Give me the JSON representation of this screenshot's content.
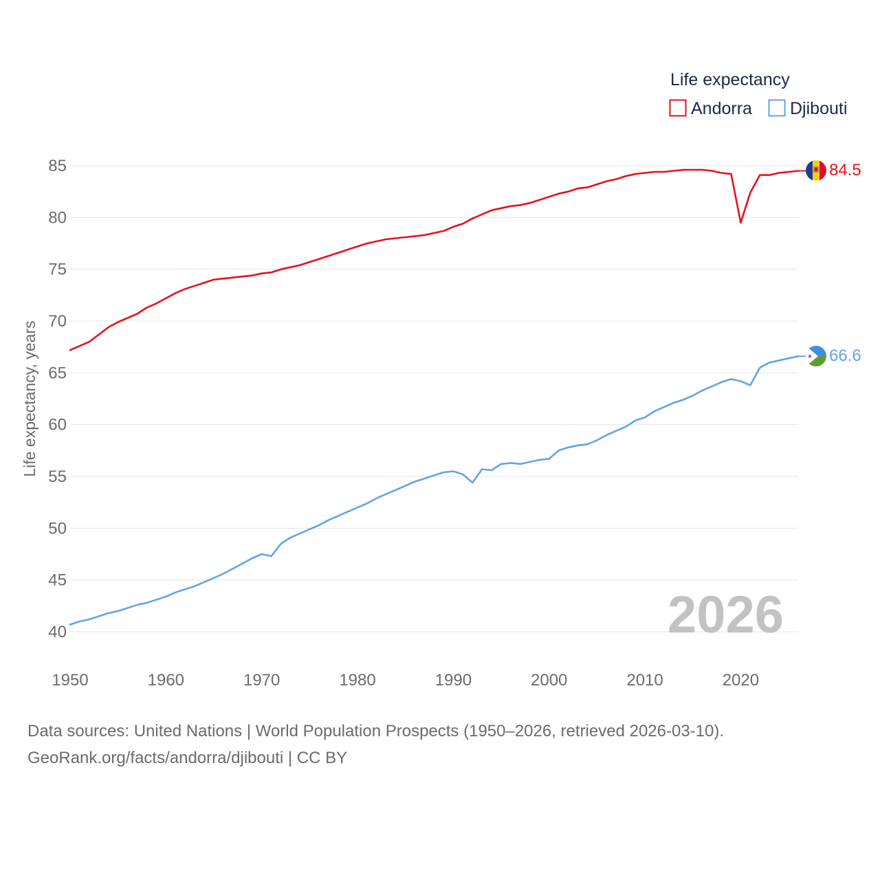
{
  "chart_data": {
    "type": "line",
    "title": "Life expectancy",
    "xlabel": "",
    "ylabel": "Life expectancy, years",
    "xlim": [
      1950,
      2026
    ],
    "ylim": [
      38,
      87
    ],
    "x_ticks": [
      1950,
      1960,
      1970,
      1980,
      1990,
      2000,
      2010,
      2020
    ],
    "y_ticks": [
      40,
      45,
      50,
      55,
      60,
      65,
      70,
      75,
      80,
      85
    ],
    "grid": true,
    "legend_position": "top-right",
    "year_watermark": "2026",
    "series": [
      {
        "name": "Andorra",
        "color": "#e8101a",
        "end_label": "84.5",
        "flag": "andorra-flag",
        "x": [
          1950,
          1951,
          1952,
          1953,
          1954,
          1955,
          1956,
          1957,
          1958,
          1959,
          1960,
          1961,
          1962,
          1963,
          1964,
          1965,
          1966,
          1967,
          1968,
          1969,
          1970,
          1971,
          1972,
          1973,
          1974,
          1975,
          1976,
          1977,
          1978,
          1979,
          1980,
          1981,
          1982,
          1983,
          1984,
          1985,
          1986,
          1987,
          1988,
          1989,
          1990,
          1991,
          1992,
          1993,
          1994,
          1995,
          1996,
          1997,
          1998,
          1999,
          2000,
          2001,
          2002,
          2003,
          2004,
          2005,
          2006,
          2007,
          2008,
          2009,
          2010,
          2011,
          2012,
          2013,
          2014,
          2015,
          2016,
          2017,
          2018,
          2019,
          2020,
          2021,
          2022,
          2023,
          2024,
          2025,
          2026
        ],
        "values": [
          67.2,
          67.6,
          68.0,
          68.7,
          69.4,
          69.9,
          70.3,
          70.7,
          71.3,
          71.7,
          72.2,
          72.7,
          73.1,
          73.4,
          73.7,
          74.0,
          74.1,
          74.2,
          74.3,
          74.4,
          74.6,
          74.7,
          75.0,
          75.2,
          75.4,
          75.7,
          76.0,
          76.3,
          76.6,
          76.9,
          77.2,
          77.5,
          77.7,
          77.9,
          78.0,
          78.1,
          78.2,
          78.3,
          78.5,
          78.7,
          79.1,
          79.4,
          79.9,
          80.3,
          80.7,
          80.9,
          81.1,
          81.2,
          81.4,
          81.7,
          82.0,
          82.3,
          82.5,
          82.8,
          82.9,
          83.2,
          83.5,
          83.7,
          84.0,
          84.2,
          84.3,
          84.4,
          84.4,
          84.5,
          84.6,
          84.6,
          84.6,
          84.5,
          84.3,
          84.2,
          79.5,
          82.4,
          84.1,
          84.1,
          84.3,
          84.4,
          84.5
        ]
      },
      {
        "name": "Djibouti",
        "color": "#62a4e4",
        "end_label": "66.6",
        "flag": "djibouti-flag",
        "x": [
          1950,
          1951,
          1952,
          1953,
          1954,
          1955,
          1956,
          1957,
          1958,
          1959,
          1960,
          1961,
          1962,
          1963,
          1964,
          1965,
          1966,
          1967,
          1968,
          1969,
          1970,
          1971,
          1972,
          1973,
          1974,
          1975,
          1976,
          1977,
          1978,
          1979,
          1980,
          1981,
          1982,
          1983,
          1984,
          1985,
          1986,
          1987,
          1988,
          1989,
          1990,
          1991,
          1992,
          1993,
          1994,
          1995,
          1996,
          1997,
          1998,
          1999,
          2000,
          2001,
          2002,
          2003,
          2004,
          2005,
          2006,
          2007,
          2008,
          2009,
          2010,
          2011,
          2012,
          2013,
          2014,
          2015,
          2016,
          2017,
          2018,
          2019,
          2020,
          2021,
          2022,
          2023,
          2024,
          2025,
          2026
        ],
        "values": [
          40.7,
          41.0,
          41.2,
          41.5,
          41.8,
          42.0,
          42.3,
          42.6,
          42.8,
          43.1,
          43.4,
          43.8,
          44.1,
          44.4,
          44.8,
          45.2,
          45.6,
          46.1,
          46.6,
          47.1,
          47.5,
          47.3,
          48.5,
          49.1,
          49.5,
          49.9,
          50.3,
          50.8,
          51.2,
          51.6,
          52.0,
          52.4,
          52.9,
          53.3,
          53.7,
          54.1,
          54.5,
          54.8,
          55.1,
          55.4,
          55.5,
          55.2,
          54.4,
          55.7,
          55.6,
          56.2,
          56.3,
          56.2,
          56.4,
          56.6,
          56.7,
          57.5,
          57.8,
          58.0,
          58.1,
          58.5,
          59.0,
          59.4,
          59.8,
          60.4,
          60.7,
          61.3,
          61.7,
          62.1,
          62.4,
          62.8,
          63.3,
          63.7,
          64.1,
          64.4,
          64.2,
          63.8,
          65.5,
          66.0,
          66.2,
          66.4,
          66.6
        ]
      }
    ]
  },
  "footer": {
    "sources_line": "Data sources: United Nations | World Population Prospects (1950–2026, retrieved 2026-03-10).",
    "credit_line": "GeoRank.org/facts/andorra/djibouti | CC BY"
  }
}
